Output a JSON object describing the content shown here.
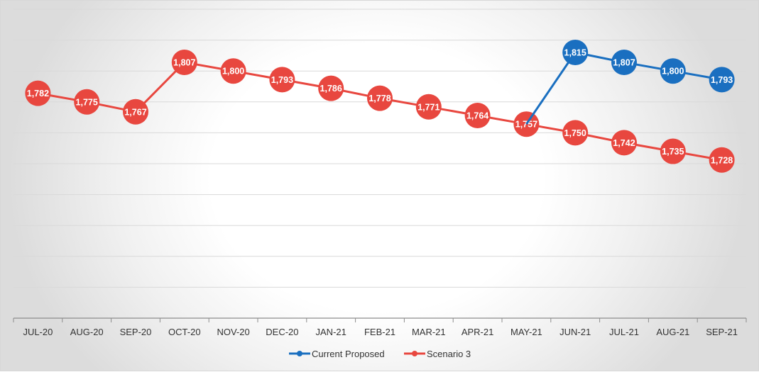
{
  "chart_data": {
    "type": "line",
    "categories": [
      "JUL-20",
      "AUG-20",
      "SEP-20",
      "OCT-20",
      "NOV-20",
      "DEC-20",
      "JAN-21",
      "FEB-21",
      "MAR-21",
      "APR-21",
      "MAY-21",
      "JUN-21",
      "JUL-21",
      "AUG-21",
      "SEP-21"
    ],
    "ylim": [
      1600,
      1850
    ],
    "grid": true,
    "legend_position": "bottom",
    "series": [
      {
        "name": "Current Proposed",
        "color": "#1a6fc0",
        "values": [
          null,
          null,
          null,
          null,
          null,
          null,
          null,
          null,
          null,
          null,
          1757,
          1815,
          1807,
          1800,
          1793
        ],
        "labels": [
          null,
          null,
          null,
          null,
          null,
          null,
          null,
          null,
          null,
          null,
          null,
          "1,815",
          "1,807",
          "1,800",
          "1,793"
        ]
      },
      {
        "name": "Scenario 3",
        "color": "#e8473f",
        "values": [
          1782,
          1775,
          1767,
          1807,
          1800,
          1793,
          1786,
          1778,
          1771,
          1764,
          1757,
          1750,
          1742,
          1735,
          1728
        ],
        "labels": [
          "1,782",
          "1,775",
          "1,767",
          "1,807",
          "1,800",
          "1,793",
          "1,786",
          "1,778",
          "1,771",
          "1,764",
          "1,757",
          "1,750",
          "1,742",
          "1,735",
          "1,728"
        ]
      }
    ]
  }
}
